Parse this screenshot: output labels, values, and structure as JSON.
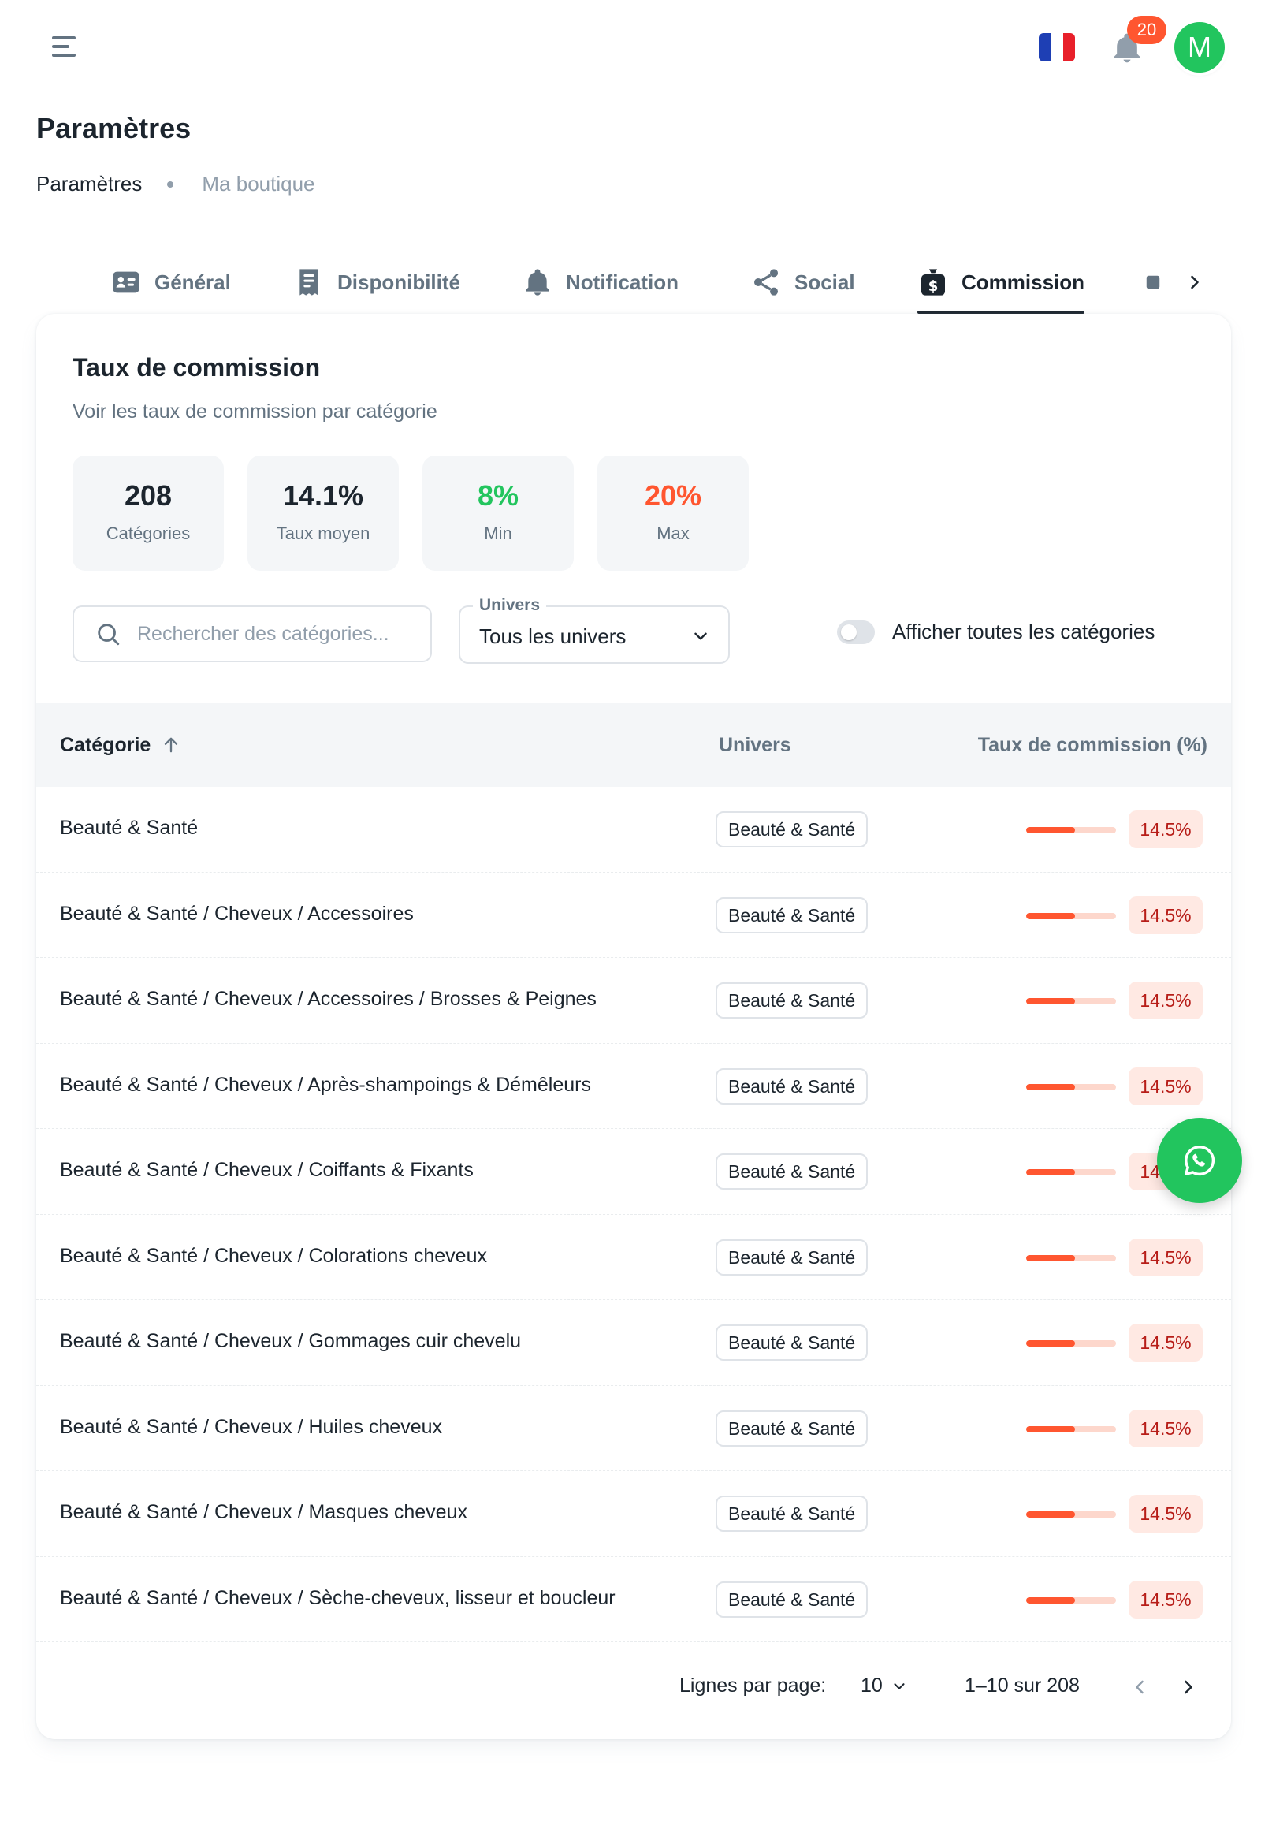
{
  "header": {
    "notification_count": "20",
    "avatar_initial": "M",
    "flag_colors": [
      "#1e3fb4",
      "#ffffff",
      "#e8202a"
    ]
  },
  "page": {
    "title": "Paramètres",
    "breadcrumb": [
      "Paramètres",
      "Ma boutique"
    ]
  },
  "tabs": [
    {
      "label": "Général",
      "icon": "id-card-icon"
    },
    {
      "label": "Disponibilité",
      "icon": "receipt-icon"
    },
    {
      "label": "Notification",
      "icon": "bell-icon"
    },
    {
      "label": "Social",
      "icon": "share-icon"
    },
    {
      "label": "Commission",
      "icon": "money-bag-icon",
      "active": true
    }
  ],
  "card": {
    "title": "Taux de commission",
    "subtitle": "Voir les taux de commission par catégorie"
  },
  "stats": [
    {
      "value": "208",
      "label": "Catégories",
      "color": "#1c252e"
    },
    {
      "value": "14.1%",
      "label": "Taux moyen",
      "color": "#1c252e"
    },
    {
      "value": "8%",
      "label": "Min",
      "color": "#22c55e"
    },
    {
      "value": "20%",
      "label": "Max",
      "color": "#ff5630"
    }
  ],
  "filters": {
    "search_placeholder": "Rechercher des catégories...",
    "universe_label": "Univers",
    "universe_value": "Tous les univers",
    "toggle_label": "Afficher toutes les catégories",
    "toggle_on": false
  },
  "table": {
    "columns": [
      "Catégorie",
      "Univers",
      "Taux de commission (%)"
    ],
    "rows": [
      {
        "category": "Beauté & Santé",
        "universe": "Beauté & Santé",
        "rate": "14.5%",
        "rate_value": 14.5
      },
      {
        "category": "Beauté & Santé / Cheveux / Accessoires",
        "universe": "Beauté & Santé",
        "rate": "14.5%",
        "rate_value": 14.5
      },
      {
        "category": "Beauté & Santé / Cheveux / Accessoires / Brosses & Peignes",
        "universe": "Beauté & Santé",
        "rate": "14.5%",
        "rate_value": 14.5
      },
      {
        "category": "Beauté & Santé / Cheveux / Après-shampoings & Démêleurs",
        "universe": "Beauté & Santé",
        "rate": "14.5%",
        "rate_value": 14.5
      },
      {
        "category": "Beauté & Santé / Cheveux / Coiffants & Fixants",
        "universe": "Beauté & Santé",
        "rate": "14.5%",
        "rate_value": 14.5
      },
      {
        "category": "Beauté & Santé / Cheveux / Colorations cheveux",
        "universe": "Beauté & Santé",
        "rate": "14.5%",
        "rate_value": 14.5
      },
      {
        "category": "Beauté & Santé / Cheveux / Gommages cuir chevelu",
        "universe": "Beauté & Santé",
        "rate": "14.5%",
        "rate_value": 14.5
      },
      {
        "category": "Beauté & Santé / Cheveux / Huiles cheveux",
        "universe": "Beauté & Santé",
        "rate": "14.5%",
        "rate_value": 14.5
      },
      {
        "category": "Beauté & Santé / Cheveux / Masques cheveux",
        "universe": "Beauté & Santé",
        "rate": "14.5%",
        "rate_value": 14.5
      },
      {
        "category": "Beauté & Santé / Cheveux / Sèche-cheveux, lisseur et boucleur",
        "universe": "Beauté & Santé",
        "rate": "14.5%",
        "rate_value": 14.5
      }
    ]
  },
  "pagination": {
    "rows_per_page_label": "Lignes par page:",
    "rows_per_page": "10",
    "range": "1–10 sur 208"
  }
}
